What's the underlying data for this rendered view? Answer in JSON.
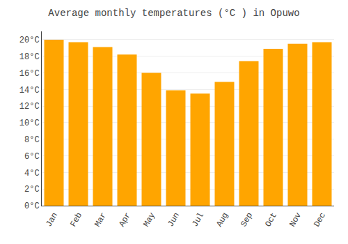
{
  "chart_data": {
    "type": "bar",
    "title": "Average monthly temperatures (°C ) in Opuwo",
    "categories": [
      "Jan",
      "Feb",
      "Mar",
      "Apr",
      "May",
      "Jun",
      "Jul",
      "Aug",
      "Sep",
      "Oct",
      "Nov",
      "Dec"
    ],
    "values": [
      20.0,
      19.7,
      19.1,
      18.2,
      16.0,
      13.9,
      13.5,
      14.9,
      17.4,
      18.9,
      19.5,
      19.7
    ],
    "color": "#FFA500",
    "ylim": [
      0,
      21
    ],
    "yticks": [
      {
        "value": 0,
        "label": "0°C"
      },
      {
        "value": 2,
        "label": "2°C"
      },
      {
        "value": 4,
        "label": "4°C"
      },
      {
        "value": 6,
        "label": "6°C"
      },
      {
        "value": 8,
        "label": "8°C"
      },
      {
        "value": 10,
        "label": "10°C"
      },
      {
        "value": 12,
        "label": "12°C"
      },
      {
        "value": 14,
        "label": "14°C"
      },
      {
        "value": 16,
        "label": "16°C"
      },
      {
        "value": 18,
        "label": "18°C"
      },
      {
        "value": 20,
        "label": "20°C"
      }
    ],
    "grid": true
  }
}
